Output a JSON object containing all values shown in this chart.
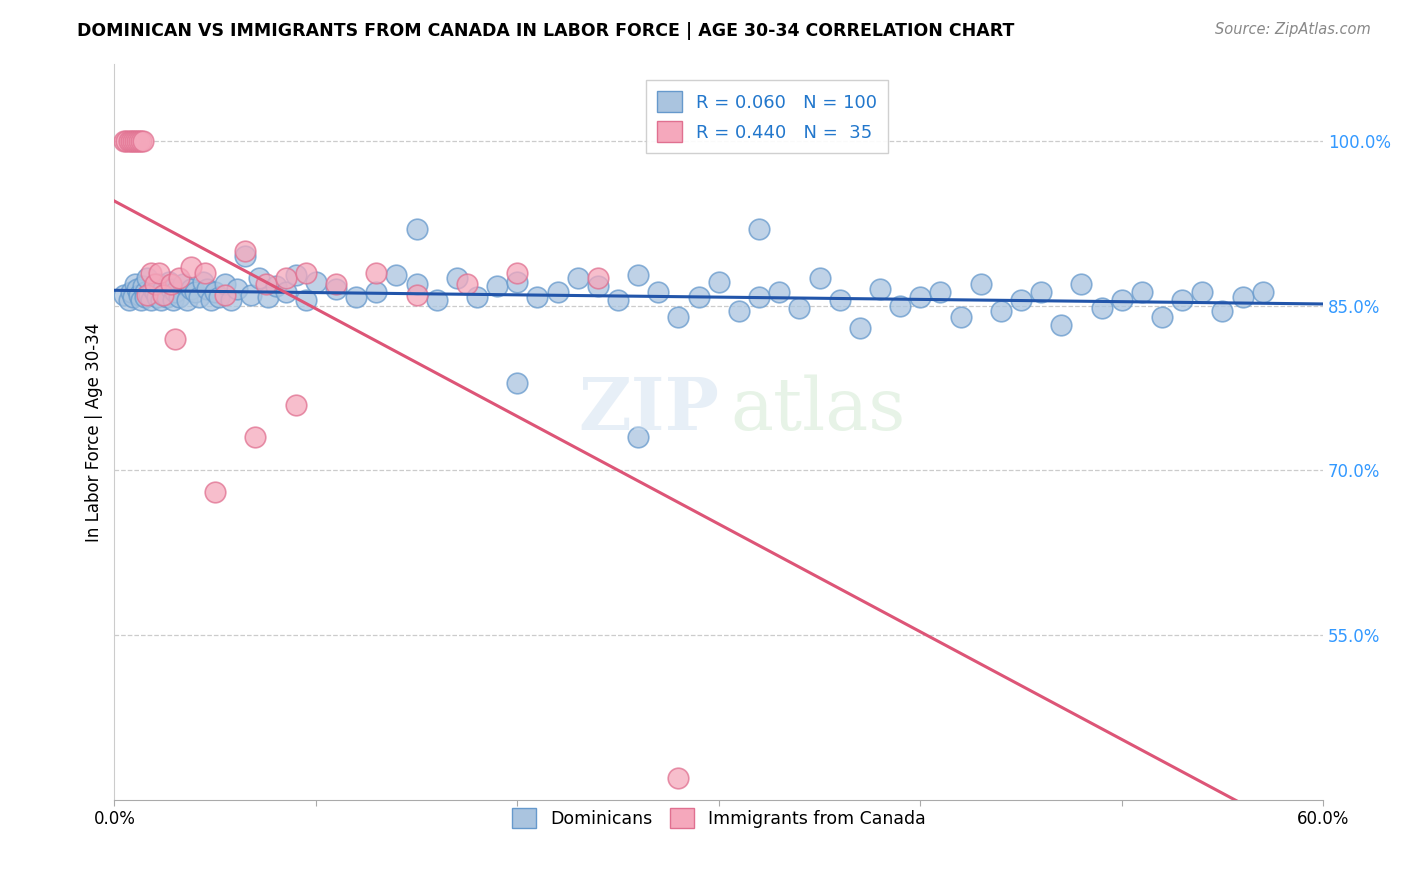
{
  "title": "DOMINICAN VS IMMIGRANTS FROM CANADA IN LABOR FORCE | AGE 30-34 CORRELATION CHART",
  "source": "Source: ZipAtlas.com",
  "ylabel": "In Labor Force | Age 30-34",
  "xlim": [
    0.0,
    0.6
  ],
  "ylim": [
    0.4,
    1.07
  ],
  "ytick_positions": [
    0.55,
    0.7,
    0.85,
    1.0
  ],
  "ytick_labels": [
    "55.0%",
    "70.0%",
    "85.0%",
    "100.0%"
  ],
  "blue_R": 0.06,
  "blue_N": 100,
  "pink_R": 0.44,
  "pink_N": 35,
  "blue_color": "#aac4df",
  "pink_color": "#f5a8bc",
  "blue_edge_color": "#6699cc",
  "pink_edge_color": "#e07090",
  "blue_line_color": "#2255aa",
  "pink_line_color": "#dd5577",
  "legend_label_blue": "Dominicans",
  "legend_label_pink": "Immigrants from Canada",
  "blue_x": [
    0.005,
    0.007,
    0.008,
    0.009,
    0.01,
    0.011,
    0.012,
    0.013,
    0.014,
    0.015,
    0.015,
    0.016,
    0.017,
    0.018,
    0.019,
    0.02,
    0.021,
    0.022,
    0.023,
    0.024,
    0.025,
    0.026,
    0.027,
    0.028,
    0.029,
    0.03,
    0.032,
    0.034,
    0.036,
    0.038,
    0.04,
    0.042,
    0.044,
    0.046,
    0.048,
    0.05,
    0.052,
    0.055,
    0.058,
    0.061,
    0.065,
    0.068,
    0.072,
    0.076,
    0.08,
    0.085,
    0.09,
    0.095,
    0.1,
    0.11,
    0.12,
    0.13,
    0.14,
    0.15,
    0.16,
    0.17,
    0.18,
    0.19,
    0.2,
    0.21,
    0.22,
    0.23,
    0.24,
    0.25,
    0.26,
    0.27,
    0.28,
    0.29,
    0.3,
    0.31,
    0.32,
    0.33,
    0.34,
    0.35,
    0.36,
    0.37,
    0.38,
    0.39,
    0.4,
    0.41,
    0.42,
    0.43,
    0.44,
    0.45,
    0.46,
    0.47,
    0.48,
    0.49,
    0.5,
    0.51,
    0.52,
    0.53,
    0.54,
    0.55,
    0.56,
    0.57,
    0.32,
    0.15,
    0.2,
    0.26
  ],
  "blue_y": [
    0.86,
    0.855,
    0.862,
    0.858,
    0.87,
    0.865,
    0.86,
    0.855,
    0.868,
    0.862,
    0.858,
    0.875,
    0.86,
    0.855,
    0.865,
    0.862,
    0.858,
    0.87,
    0.855,
    0.865,
    0.86,
    0.858,
    0.872,
    0.865,
    0.855,
    0.862,
    0.858,
    0.87,
    0.855,
    0.865,
    0.862,
    0.858,
    0.872,
    0.865,
    0.855,
    0.862,
    0.858,
    0.87,
    0.855,
    0.865,
    0.895,
    0.86,
    0.875,
    0.858,
    0.868,
    0.862,
    0.878,
    0.855,
    0.872,
    0.865,
    0.858,
    0.862,
    0.878,
    0.87,
    0.855,
    0.875,
    0.858,
    0.868,
    0.872,
    0.858,
    0.862,
    0.875,
    0.868,
    0.855,
    0.878,
    0.862,
    0.84,
    0.858,
    0.872,
    0.845,
    0.858,
    0.862,
    0.848,
    0.875,
    0.855,
    0.83,
    0.865,
    0.85,
    0.858,
    0.862,
    0.84,
    0.87,
    0.845,
    0.855,
    0.862,
    0.832,
    0.87,
    0.848,
    0.855,
    0.862,
    0.84,
    0.855,
    0.862,
    0.845,
    0.858,
    0.862,
    0.92,
    0.92,
    0.78,
    0.73
  ],
  "pink_x": [
    0.005,
    0.006,
    0.007,
    0.008,
    0.009,
    0.01,
    0.011,
    0.012,
    0.013,
    0.014,
    0.016,
    0.018,
    0.02,
    0.022,
    0.024,
    0.028,
    0.032,
    0.038,
    0.045,
    0.055,
    0.065,
    0.075,
    0.085,
    0.095,
    0.11,
    0.13,
    0.15,
    0.175,
    0.2,
    0.24,
    0.09,
    0.07,
    0.05,
    0.03,
    0.28
  ],
  "pink_y": [
    1.0,
    1.0,
    1.0,
    1.0,
    1.0,
    1.0,
    1.0,
    1.0,
    1.0,
    1.0,
    0.86,
    0.88,
    0.87,
    0.88,
    0.86,
    0.87,
    0.875,
    0.885,
    0.88,
    0.86,
    0.9,
    0.87,
    0.875,
    0.88,
    0.87,
    0.88,
    0.86,
    0.87,
    0.88,
    0.875,
    0.76,
    0.73,
    0.68,
    0.82,
    0.42
  ]
}
